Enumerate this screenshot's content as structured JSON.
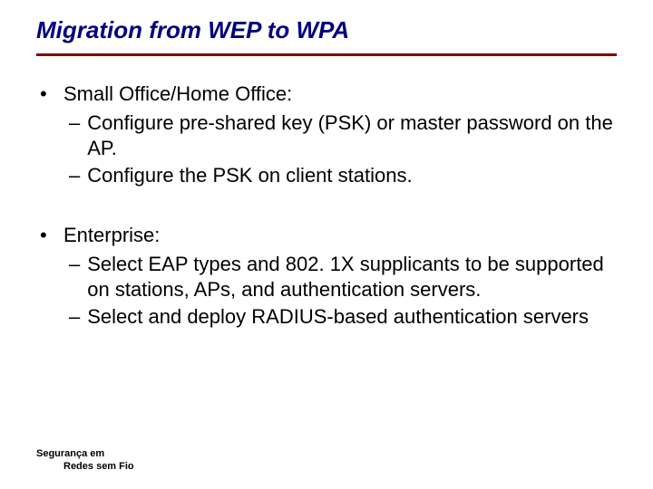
{
  "title": "Migration from WEP to WPA",
  "colors": {
    "title": "#000080",
    "rule": "#800000",
    "text": "#000000",
    "background": "#ffffff"
  },
  "typography": {
    "title_fontsize": 26,
    "body_fontsize": 22,
    "footer_fontsize": 11,
    "title_style": "italic bold",
    "family": "Verdana"
  },
  "bullets": [
    {
      "label": "Small Office/Home Office:",
      "subs": [
        "Configure pre-shared key (PSK) or master password on the AP.",
        "Configure the PSK on client stations."
      ]
    },
    {
      "label": "Enterprise:",
      "subs": [
        "Select EAP types and 802. 1X supplicants to be supported on stations, APs, and authentication servers.",
        "Select and deploy RADIUS-based authentication servers"
      ]
    }
  ],
  "footer": {
    "line1": "Segurança em",
    "line2": "Redes sem Fio"
  }
}
